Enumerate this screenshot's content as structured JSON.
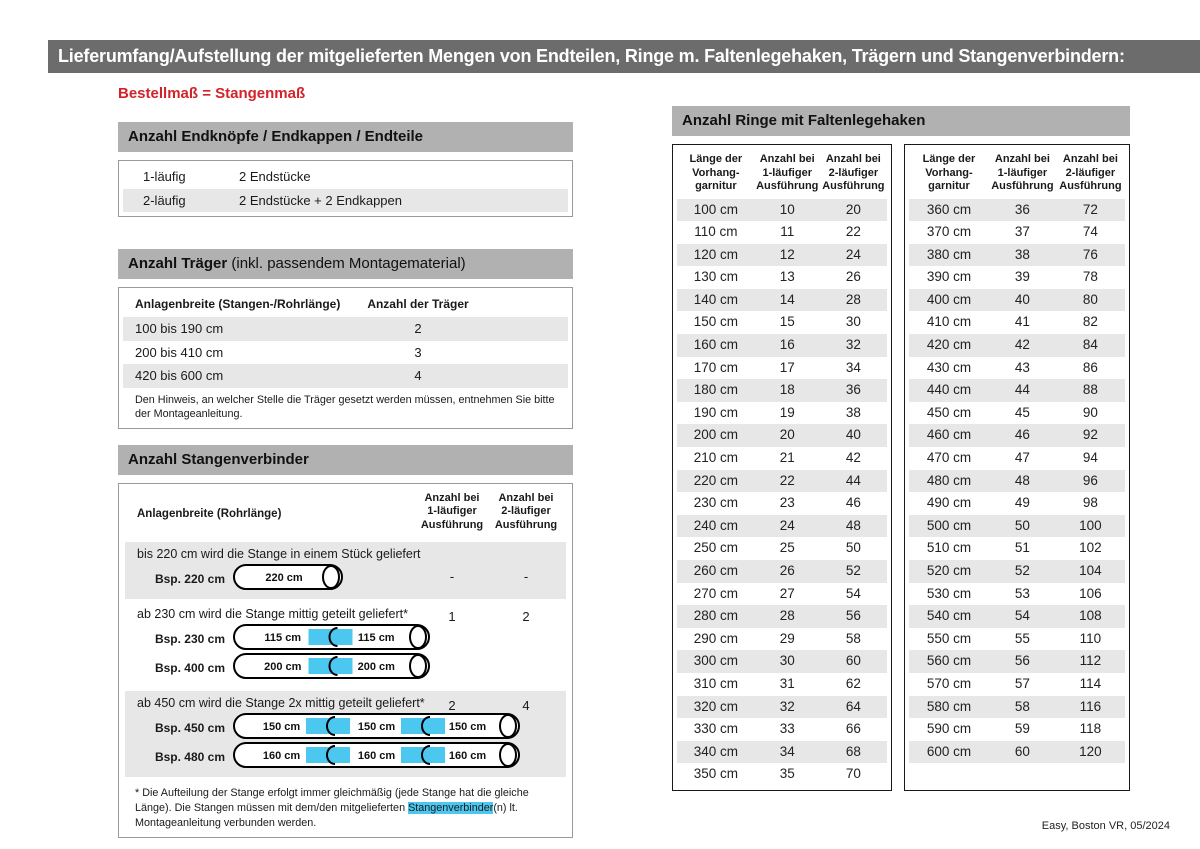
{
  "header": {
    "title": "Lieferumfang/Aufstellung der mitgelieferten Mengen von Endteilen, Ringe m. Faltenlegehaken, Trägern und Stangenverbindern:"
  },
  "colors": {
    "accent_red": "#d2232a",
    "connector_cyan": "#4cc7ef",
    "topbar_gray": "#6c6c6c",
    "section_gray": "#b1b1b1",
    "row_stripe_gray": "#e7e7e7"
  },
  "left": {
    "note_red": "Bestellmaß = Stangenmaß",
    "endteile": {
      "title": "Anzahl Endknöpfe / Endkappen / Endteile",
      "rows": [
        {
          "label": "1-läufig",
          "value": "2 Endstücke"
        },
        {
          "label": "2-läufig",
          "value": "2 Endstücke + 2 Endkappen"
        }
      ]
    },
    "traeger": {
      "title_bold": "Anzahl Träger",
      "title_rest": "(inkl. passendem Montagematerial)",
      "col1": "Anlagenbreite (Stangen-/Rohrlänge)",
      "col2": "Anzahl der Träger",
      "rows": [
        {
          "label": "100 bis 190 cm",
          "value": "2"
        },
        {
          "label": "200 bis 410 cm",
          "value": "3"
        },
        {
          "label": "420 bis 600 cm",
          "value": "4"
        }
      ],
      "note": "Den Hinweis, an welcher Stelle die Träger gesetzt werden müssen, entnehmen Sie bitte der Montageanleitung."
    },
    "verbinder": {
      "title": "Anzahl Stangenverbinder",
      "col1": "Anlagenbreite (Rohrlänge)",
      "col2": "Anzahl bei\n1-läufiger\nAusführung",
      "col3": "Anzahl bei\n2-läufiger\nAusführung",
      "groups": [
        {
          "text": "bis 220 cm wird die Stange in einem Stück geliefert",
          "v1": "-",
          "v2": "-",
          "rods": [
            {
              "label": "Bsp. 220 cm",
              "segments": [
                "220 cm"
              ]
            }
          ]
        },
        {
          "text": "ab 230 cm wird die Stange mittig geteilt geliefert*",
          "v1": "1",
          "v2": "2",
          "rods": [
            {
              "label": "Bsp. 230 cm",
              "segments": [
                "115 cm",
                "115 cm"
              ]
            },
            {
              "label": "Bsp. 400 cm",
              "segments": [
                "200 cm",
                "200 cm"
              ]
            }
          ]
        },
        {
          "text": "ab 450 cm wird die Stange 2x mittig geteilt geliefert*",
          "v1": "2",
          "v2": "4",
          "rods": [
            {
              "label": "Bsp. 450 cm",
              "segments": [
                "150 cm",
                "150 cm",
                "150 cm"
              ]
            },
            {
              "label": "Bsp. 480 cm",
              "segments": [
                "160 cm",
                "160 cm",
                "160 cm"
              ]
            }
          ]
        }
      ],
      "footnote_pre": "* Die Aufteilung der Stange erfolgt immer gleichmäßig (jede Stange hat die gleiche Länge). Die Stangen müssen mit dem/den mitgelieferten ",
      "footnote_highlight": "Stangenverbinder",
      "footnote_post": "(n) lt. Montageanleitung verbunden werden."
    }
  },
  "rings": {
    "title": "Anzahl Ringe mit Faltenlegehaken",
    "col_headers": [
      "Länge der\nVorhang-\ngarnitur",
      "Anzahl bei\n1-läufiger\nAusführung",
      "Anzahl bei\n2-läufiger\nAusführung"
    ],
    "table1": [
      [
        "100 cm",
        "10",
        "20"
      ],
      [
        "110 cm",
        "11",
        "22"
      ],
      [
        "120 cm",
        "12",
        "24"
      ],
      [
        "130 cm",
        "13",
        "26"
      ],
      [
        "140 cm",
        "14",
        "28"
      ],
      [
        "150 cm",
        "15",
        "30"
      ],
      [
        "160 cm",
        "16",
        "32"
      ],
      [
        "170 cm",
        "17",
        "34"
      ],
      [
        "180 cm",
        "18",
        "36"
      ],
      [
        "190 cm",
        "19",
        "38"
      ],
      [
        "200 cm",
        "20",
        "40"
      ],
      [
        "210 cm",
        "21",
        "42"
      ],
      [
        "220 cm",
        "22",
        "44"
      ],
      [
        "230 cm",
        "23",
        "46"
      ],
      [
        "240 cm",
        "24",
        "48"
      ],
      [
        "250 cm",
        "25",
        "50"
      ],
      [
        "260 cm",
        "26",
        "52"
      ],
      [
        "270 cm",
        "27",
        "54"
      ],
      [
        "280 cm",
        "28",
        "56"
      ],
      [
        "290 cm",
        "29",
        "58"
      ],
      [
        "300 cm",
        "30",
        "60"
      ],
      [
        "310 cm",
        "31",
        "62"
      ],
      [
        "320 cm",
        "32",
        "64"
      ],
      [
        "330 cm",
        "33",
        "66"
      ],
      [
        "340 cm",
        "34",
        "68"
      ],
      [
        "350 cm",
        "35",
        "70"
      ]
    ],
    "table2": [
      [
        "360 cm",
        "36",
        "72"
      ],
      [
        "370 cm",
        "37",
        "74"
      ],
      [
        "380 cm",
        "38",
        "76"
      ],
      [
        "390 cm",
        "39",
        "78"
      ],
      [
        "400 cm",
        "40",
        "80"
      ],
      [
        "410 cm",
        "41",
        "82"
      ],
      [
        "420 cm",
        "42",
        "84"
      ],
      [
        "430 cm",
        "43",
        "86"
      ],
      [
        "440 cm",
        "44",
        "88"
      ],
      [
        "450 cm",
        "45",
        "90"
      ],
      [
        "460 cm",
        "46",
        "92"
      ],
      [
        "470 cm",
        "47",
        "94"
      ],
      [
        "480 cm",
        "48",
        "96"
      ],
      [
        "490 cm",
        "49",
        "98"
      ],
      [
        "500 cm",
        "50",
        "100"
      ],
      [
        "510 cm",
        "51",
        "102"
      ],
      [
        "520 cm",
        "52",
        "104"
      ],
      [
        "530 cm",
        "53",
        "106"
      ],
      [
        "540 cm",
        "54",
        "108"
      ],
      [
        "550 cm",
        "55",
        "110"
      ],
      [
        "560 cm",
        "56",
        "112"
      ],
      [
        "570 cm",
        "57",
        "114"
      ],
      [
        "580 cm",
        "58",
        "116"
      ],
      [
        "590 cm",
        "59",
        "118"
      ],
      [
        "600 cm",
        "60",
        "120"
      ]
    ]
  },
  "footer": {
    "text": "Easy, Boston VR, 05/2024"
  }
}
